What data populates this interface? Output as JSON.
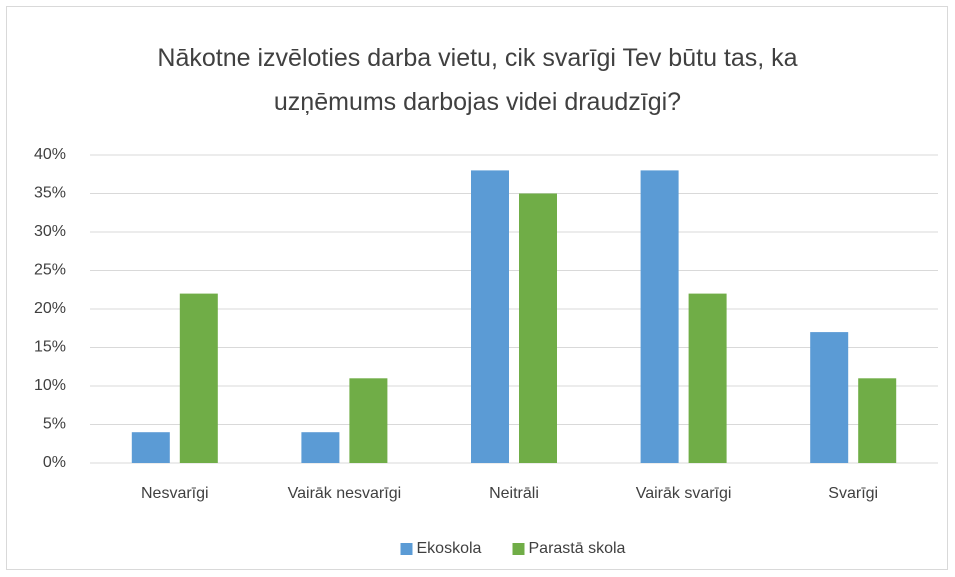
{
  "chart_data": {
    "type": "bar",
    "title": "Nākotne izvēloties darba vietu, cik svarīgi Tev būtu tas, ka uzņēmums darbojas videi draudzīgi?",
    "categories": [
      "Nesvarīgi",
      "Vairāk nesvarīgi",
      "Neitrāli",
      "Vairāk svarīgi",
      "Svarīgi"
    ],
    "series": [
      {
        "name": "Ekoskola",
        "color": "#5b9bd5",
        "values": [
          4,
          4,
          38,
          38,
          17
        ]
      },
      {
        "name": "Parastā skola",
        "color": "#70ad47",
        "values": [
          22,
          11,
          35,
          22,
          11
        ]
      }
    ],
    "ylim": [
      0,
      40
    ],
    "yticks": [
      {
        "value": 0,
        "label": "0%"
      },
      {
        "value": 5,
        "label": "5%"
      },
      {
        "value": 10,
        "label": "10%"
      },
      {
        "value": 15,
        "label": "15%"
      },
      {
        "value": 20,
        "label": "20%"
      },
      {
        "value": 25,
        "label": "25%"
      },
      {
        "value": 30,
        "label": "30%"
      },
      {
        "value": 35,
        "label": "35%"
      },
      {
        "value": 40,
        "label": "40%"
      }
    ],
    "grid": true,
    "legend": "bottom"
  }
}
